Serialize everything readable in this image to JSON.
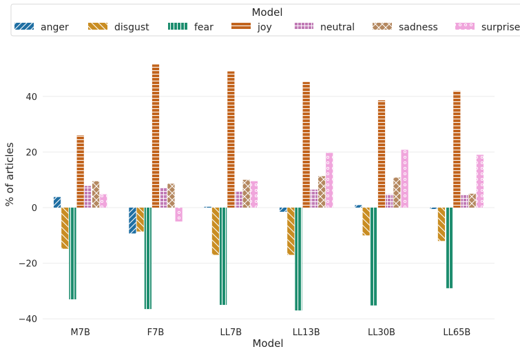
{
  "chart_data": {
    "type": "bar",
    "title": "",
    "xlabel": "Model",
    "ylabel": "% of articles",
    "legend_title": "Model",
    "legend_placement": "top",
    "grid": true,
    "ylim": [
      -41,
      58
    ],
    "yticks": [
      -40,
      -20,
      0,
      20,
      40
    ],
    "categories": [
      "M7B",
      "F7B",
      "LL7B",
      "LL13B",
      "LL30B",
      "LL65B"
    ],
    "series": [
      {
        "name": "anger",
        "color": "#1f6fa3",
        "pattern": "diag-slash",
        "values": [
          3.8,
          -9.3,
          0.3,
          -1.5,
          0.9,
          -0.5
        ]
      },
      {
        "name": "disgust",
        "color": "#c98d22",
        "pattern": "diag-backslash",
        "values": [
          -14.8,
          -8.6,
          -17.0,
          -17.0,
          -10.0,
          -12.0
        ]
      },
      {
        "name": "fear",
        "color": "#1b8c6d",
        "pattern": "vertical",
        "values": [
          -33.0,
          -36.5,
          -35.0,
          -37.0,
          -35.2,
          -29.0
        ]
      },
      {
        "name": "joy",
        "color": "#c1621b",
        "pattern": "horizontal",
        "values": [
          26.0,
          51.5,
          49.0,
          45.2,
          38.6,
          42.0
        ]
      },
      {
        "name": "neutral",
        "color": "#c07ab5",
        "pattern": "grid",
        "values": [
          7.8,
          7.0,
          5.8,
          6.5,
          4.8,
          4.5
        ]
      },
      {
        "name": "sadness",
        "color": "#b48860",
        "pattern": "cross",
        "values": [
          9.5,
          8.6,
          10.0,
          11.3,
          10.8,
          5.0
        ]
      },
      {
        "name": "surprise",
        "color": "#f0a5dc",
        "pattern": "circles",
        "values": [
          4.8,
          -5.0,
          9.5,
          19.7,
          20.8,
          19.0
        ]
      }
    ]
  }
}
